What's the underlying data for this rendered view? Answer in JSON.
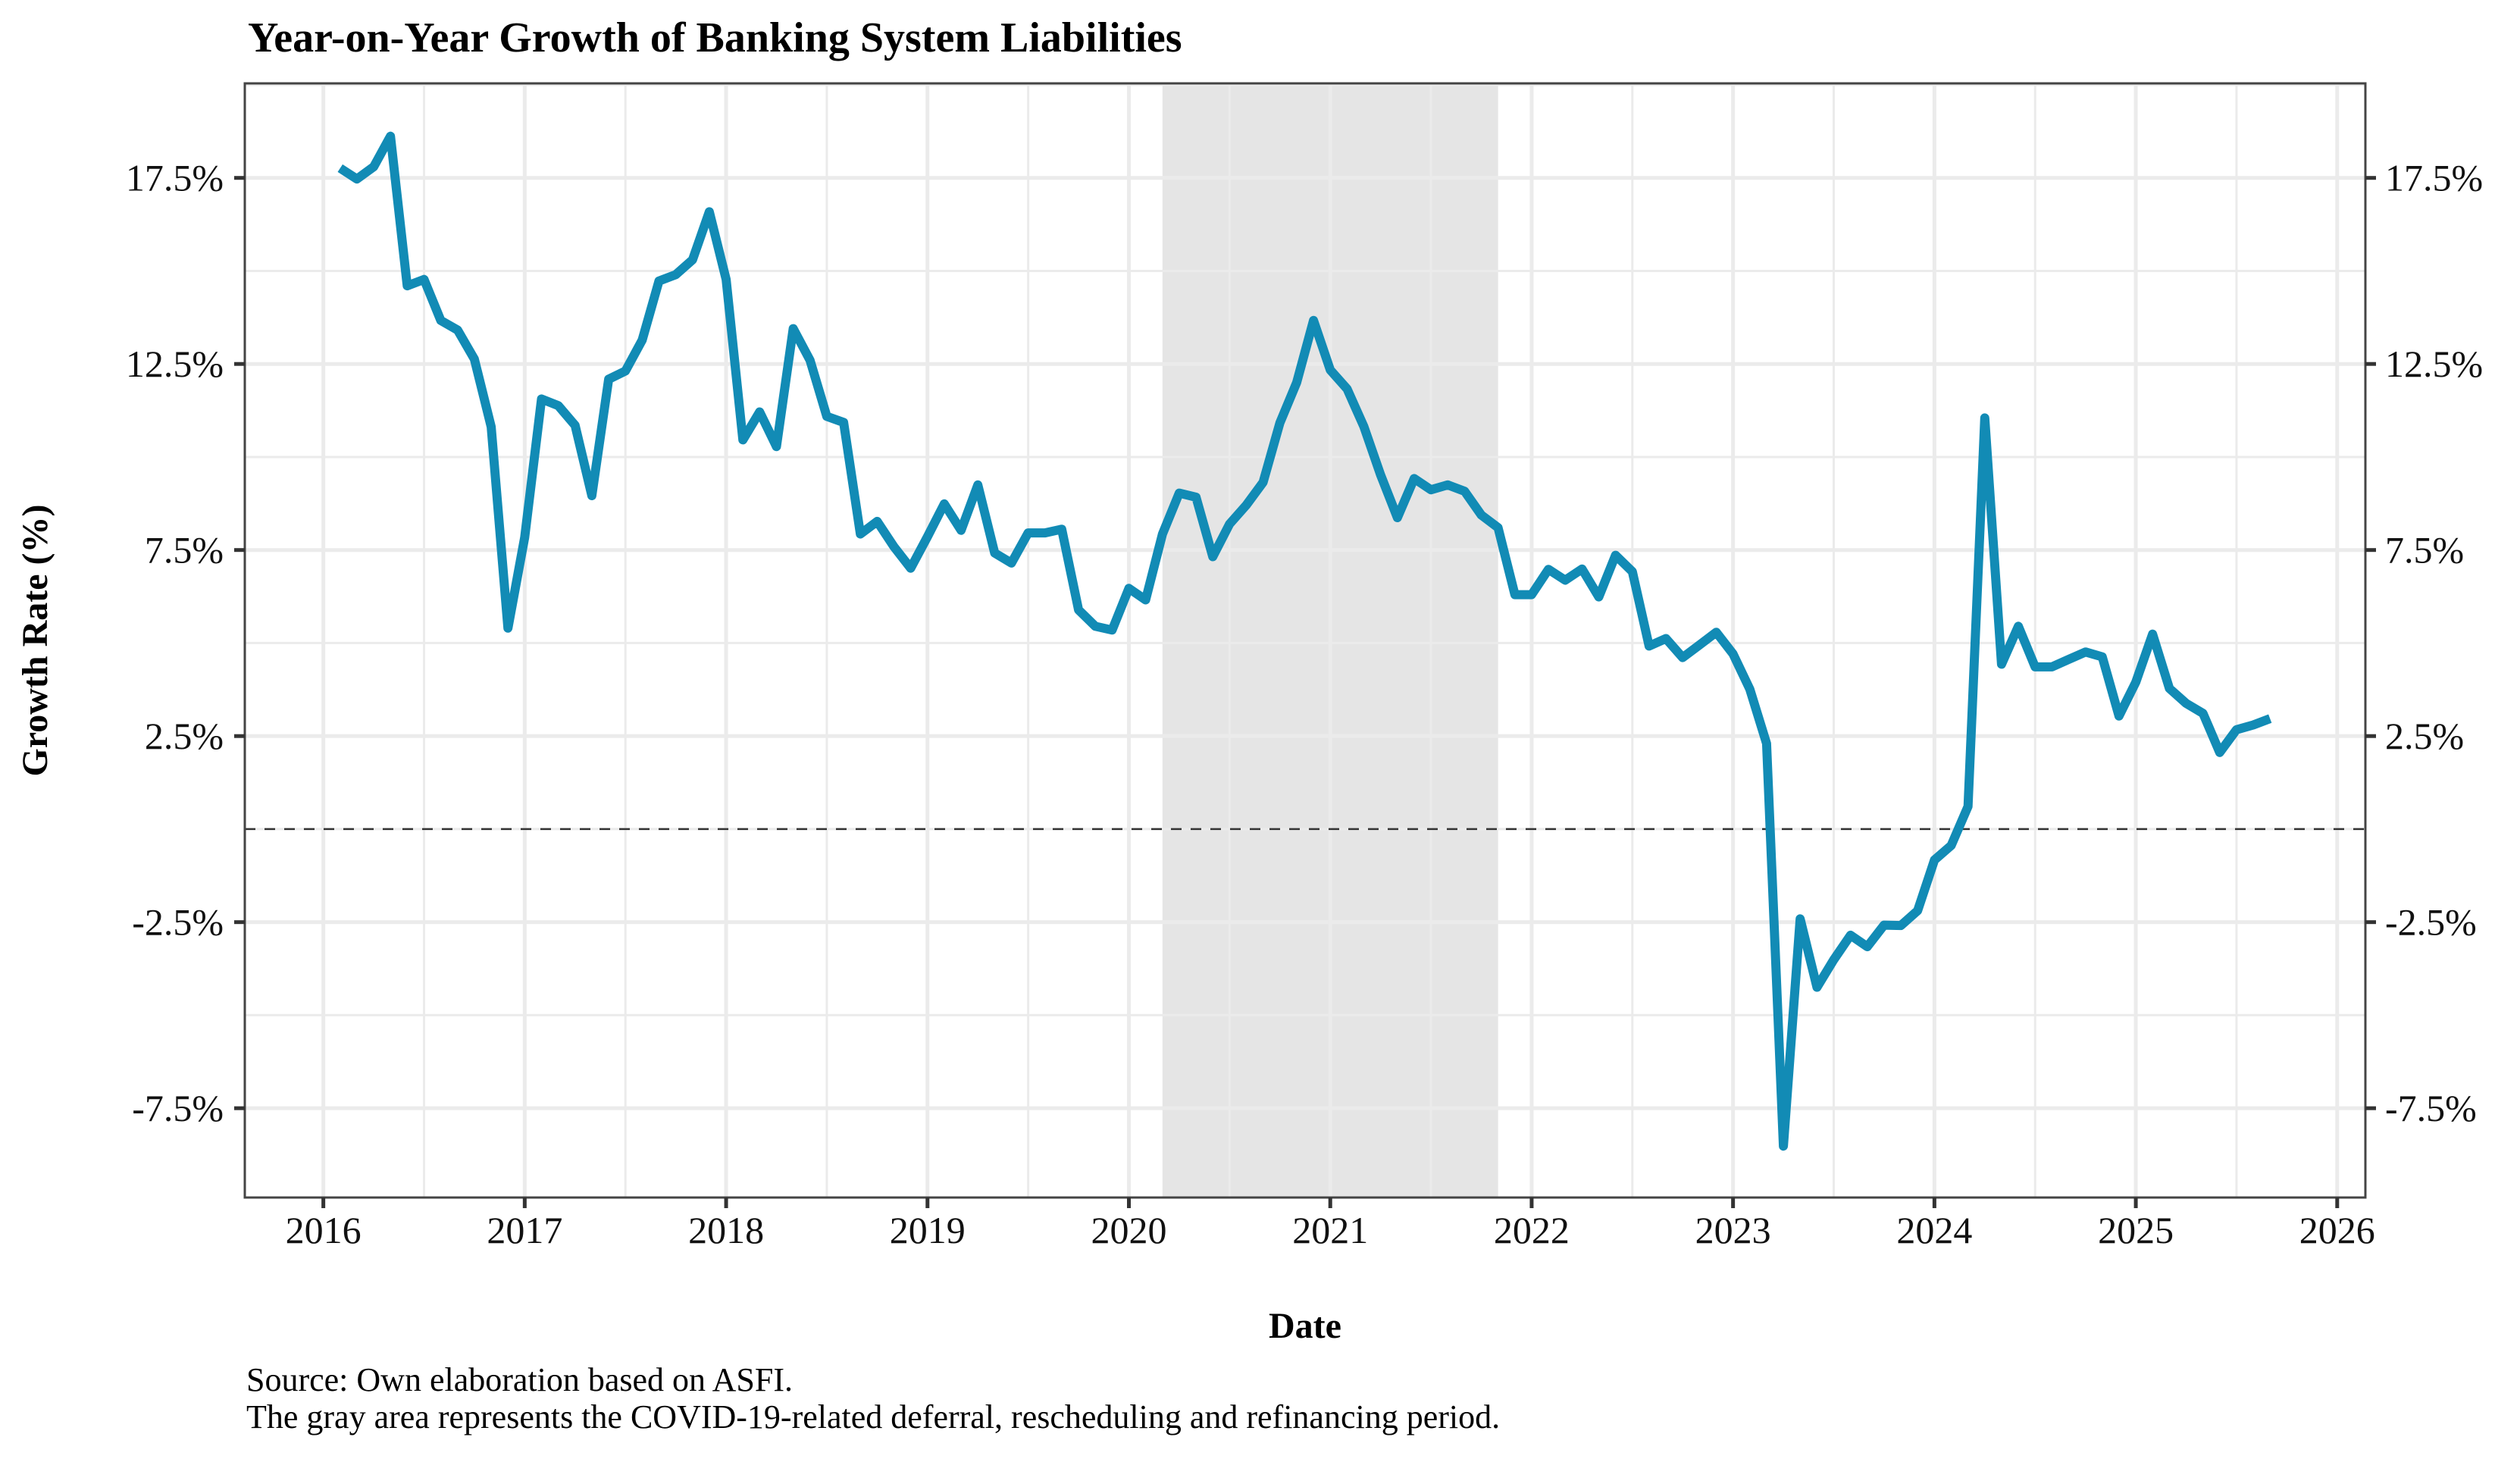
{
  "chart_data": {
    "type": "line",
    "title": "Year-on-Year Growth of Banking System Liabilities",
    "xlabel": "Date",
    "ylabel": "Growth Rate (%)",
    "xlim": [
      2015.61,
      2026.14
    ],
    "ylim": [
      -9.9,
      20.04
    ],
    "x_ticks": [
      2016,
      2017,
      2018,
      2019,
      2020,
      2021,
      2022,
      2023,
      2024,
      2025,
      2026
    ],
    "x_tick_labels": [
      "2016",
      "2017",
      "2018",
      "2019",
      "2020",
      "2021",
      "2022",
      "2023",
      "2024",
      "2025",
      "2026"
    ],
    "y_ticks": [
      17.5,
      12.5,
      7.5,
      2.5,
      -2.5,
      -7.5
    ],
    "y_tick_labels": [
      "17.5%",
      "12.5%",
      "7.5%",
      "2.5%",
      "-2.5%",
      "-7.5%"
    ],
    "y_axis_duplicated_right": true,
    "grid": true,
    "reference_line": {
      "y": 0,
      "style": "dashed",
      "color": "#333333"
    },
    "shaded_period": {
      "start": "2020-03",
      "end": "2021-11",
      "color": "#e5e5e5"
    },
    "series": [
      {
        "name": "Banking System Liabilities YoY Growth",
        "color": "#128bb5",
        "start": "2016-02",
        "frequency": "monthly",
        "values": [
          17.76,
          17.47,
          17.8,
          18.62,
          14.6,
          14.77,
          13.67,
          13.41,
          12.63,
          10.81,
          5.4,
          7.84,
          11.56,
          11.38,
          10.85,
          8.96,
          12.09,
          12.31,
          13.14,
          14.73,
          14.9,
          15.3,
          16.59,
          14.77,
          10.46,
          11.21,
          10.28,
          13.45,
          12.6,
          11.09,
          10.93,
          7.93,
          8.27,
          7.59,
          7.01,
          7.86,
          8.74,
          8.03,
          9.25,
          7.42,
          7.15,
          7.96,
          7.96,
          8.06,
          5.89,
          5.45,
          5.35,
          6.47,
          6.16,
          7.93,
          9.03,
          8.92,
          7.32,
          8.2,
          8.71,
          9.32,
          10.92,
          12.0,
          13.67,
          12.34,
          11.83,
          10.82,
          9.52,
          8.37,
          9.42,
          9.12,
          9.25,
          9.08,
          8.44,
          8.1,
          6.3,
          6.3,
          6.98,
          6.69,
          6.99,
          6.24,
          7.36,
          6.92,
          4.92,
          5.12,
          4.61,
          4.95,
          5.29,
          4.71,
          3.76,
          2.3,
          -8.52,
          -2.41,
          -4.25,
          -3.51,
          -2.85,
          -3.16,
          -2.58,
          -2.59,
          -2.19,
          -0.83,
          -0.44,
          0.61,
          11.05,
          4.43,
          5.45,
          4.36,
          4.36,
          4.56,
          4.76,
          4.63,
          3.04,
          3.95,
          5.24,
          3.78,
          3.38,
          3.11,
          2.06,
          2.67,
          2.8,
          2.97
        ]
      }
    ],
    "caption_lines": [
      "Source: Own elaboration based on ASFI.",
      "The gray area represents the COVID-19-related deferral, rescheduling and refinancing period."
    ]
  }
}
